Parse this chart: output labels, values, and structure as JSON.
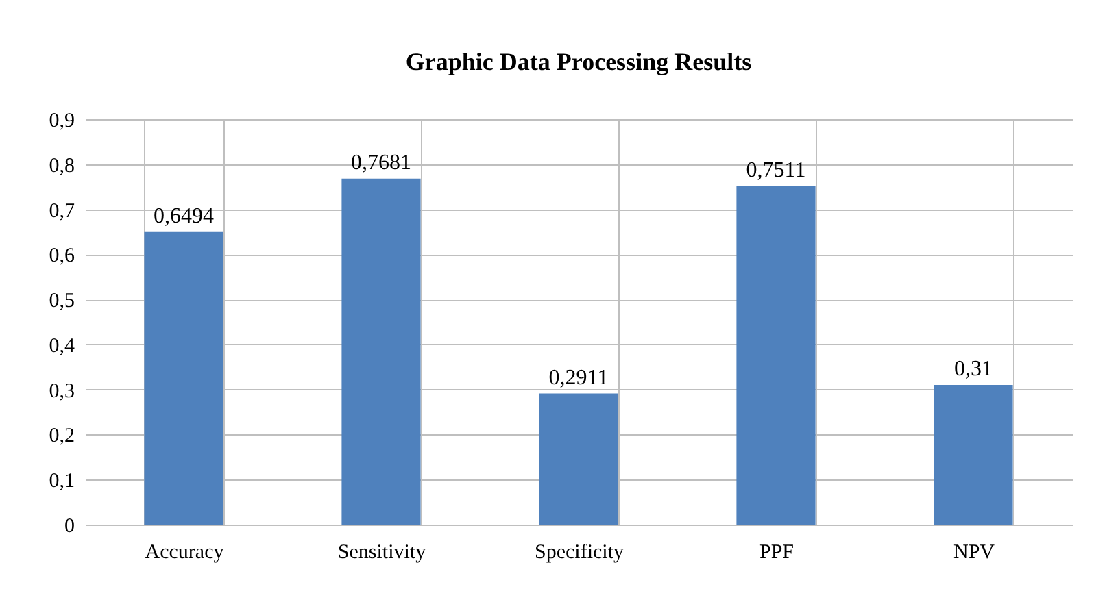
{
  "chart_data": {
    "type": "bar",
    "title": "Graphic Data Processing Results",
    "categories": [
      "Accuracy",
      "Sensitivity",
      "Specificity",
      "PPF",
      "NPV"
    ],
    "series": [
      {
        "color": "#4f81bd",
        "values": [
          0.6494,
          0.7681,
          0.2911,
          0.7511,
          0.31
        ],
        "value_labels": [
          "0,6494",
          "0,7681",
          "0,2911",
          "0,7511",
          "0,31"
        ]
      }
    ],
    "ylim": [
      0,
      0.9
    ],
    "yticks": [
      0,
      {
        "value": 0.1,
        "label": "0,1"
      },
      {
        "value": 0.2,
        "label": "0,2"
      },
      {
        "value": 0.3,
        "label": "0,3"
      },
      {
        "value": 0.4,
        "label": "0,4"
      },
      {
        "value": 0.5,
        "label": "0,5"
      },
      {
        "value": 0.6,
        "label": "0,6"
      },
      {
        "value": 0.7,
        "label": "0,7"
      },
      {
        "value": 0.8,
        "label": "0,8"
      },
      {
        "value": 0.9,
        "label": "0,9"
      }
    ],
    "grid": true,
    "legend": false
  }
}
